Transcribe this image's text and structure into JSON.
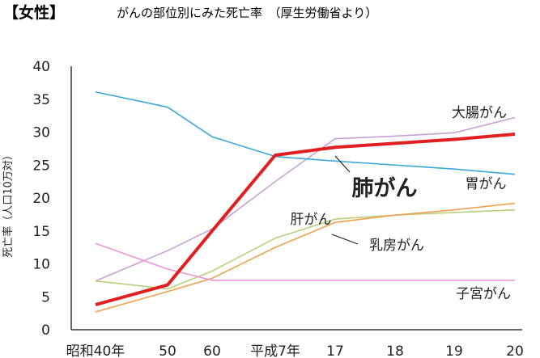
{
  "chart_data": {
    "type": "line",
    "title_bracket": "【女性】",
    "title": "がんの部位別にみた死亡率　（厚生労働省より）",
    "ylabel": "死亡率（人口10万対）",
    "xlabel": "",
    "ylim": [
      0,
      40
    ],
    "yticks": [
      0,
      5,
      10,
      15,
      20,
      25,
      30,
      35,
      40
    ],
    "categories": [
      "昭和40年",
      "50",
      "60",
      "平成7年",
      "17",
      "18",
      "19",
      "20"
    ],
    "grid": false,
    "legend": "inline-labels",
    "series": [
      {
        "name": "大腸がん",
        "color": "#c9a0d6",
        "bold": false,
        "values": [
          7.4,
          12.0,
          15.3,
          22.5,
          29.0,
          29.4,
          29.9,
          32.2
        ]
      },
      {
        "name": "肺がん",
        "color": "#e02020",
        "bold": true,
        "values": [
          3.8,
          6.8,
          15.0,
          26.5,
          27.7,
          28.3,
          28.9,
          29.7
        ]
      },
      {
        "name": "胃がん",
        "color": "#3ba8d8",
        "bold": false,
        "values": [
          36.1,
          33.8,
          29.3,
          26.3,
          25.6,
          25.0,
          24.4,
          23.6
        ]
      },
      {
        "name": "肝がん",
        "color": "#b8d07a",
        "bold": false,
        "values": [
          7.4,
          6.2,
          8.9,
          13.9,
          16.8,
          17.4,
          17.8,
          18.2
        ]
      },
      {
        "name": "乳房がん",
        "color": "#f0a050",
        "bold": false,
        "values": [
          2.7,
          5.8,
          7.8,
          12.5,
          16.3,
          17.4,
          18.2,
          19.2
        ]
      },
      {
        "name": "子宮がん",
        "color": "#f090d8",
        "bold": false,
        "values": [
          13.1,
          9.2,
          7.5,
          7.5,
          7.5,
          7.5,
          7.5,
          7.5
        ]
      }
    ]
  }
}
